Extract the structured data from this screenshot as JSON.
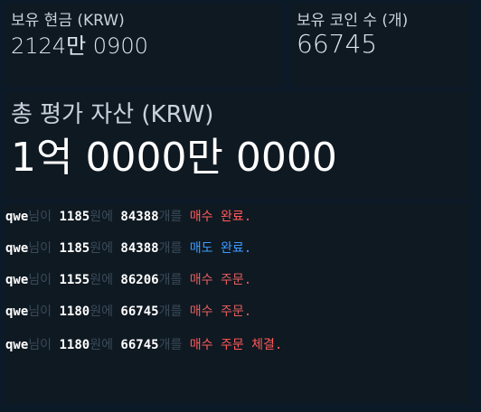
{
  "cards": {
    "cash": {
      "label": "보유 현금 (KRW)",
      "value": "2124만 0900"
    },
    "coins": {
      "label": "보유 코인 수 (개)",
      "value": "66745"
    },
    "total": {
      "label": "총 평가 자산 (KRW)",
      "value": "1억 0000만 0000"
    }
  },
  "log": {
    "entries": [
      {
        "user": "qwe",
        "p1": "님이",
        "price": "1185",
        "p2": "원에",
        "qty": "84388",
        "p3": "개를",
        "action": "매수 완료.",
        "color": "#ff5a5a"
      },
      {
        "user": "qwe",
        "p1": "님이",
        "price": "1185",
        "p2": "원에",
        "qty": "84388",
        "p3": "개를",
        "action": "매도 완료.",
        "color": "#3d9bff"
      },
      {
        "user": "qwe",
        "p1": "님이",
        "price": "1155",
        "p2": "원에",
        "qty": "86206",
        "p3": "개를",
        "action": "매수 주문.",
        "color": "#e45f5f"
      },
      {
        "user": "qwe",
        "p1": "님이",
        "price": "1180",
        "p2": "원에",
        "qty": "66745",
        "p3": "개를",
        "action": "매수 주문.",
        "color": "#e45f5f"
      },
      {
        "user": "qwe",
        "p1": "님이",
        "price": "1180",
        "p2": "원에",
        "qty": "66745",
        "p3": "개를",
        "action": "매수 주문 체결.",
        "color": "#ff5a5a"
      }
    ]
  }
}
